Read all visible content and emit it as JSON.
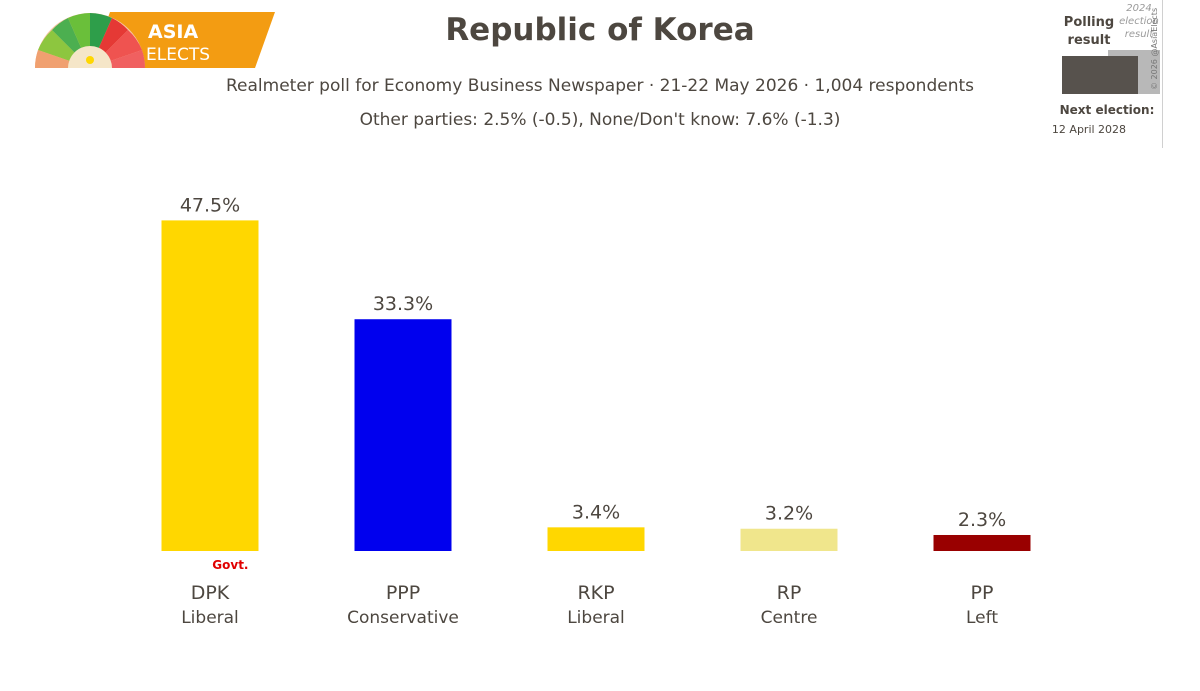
{
  "brand": {
    "line1": "ASIA",
    "line2": "ELECTS"
  },
  "header": {
    "title": "Republic of Korea",
    "subtitle": "Realmeter poll for Economy Business Newspaper · 21-22 May 2026 · 1,004 respondents",
    "note": "Other parties: 2.5% (-0.5), None/Don't know: 7.6% (-1.3)"
  },
  "legend": {
    "polling": "Polling result",
    "election": "2024 election result",
    "copyright": "© 2026 @AsiaElects",
    "next_label": "Next election:",
    "next_date": "12 April 2028"
  },
  "chart_data": {
    "type": "bar",
    "title": "Republic of Korea",
    "ylim": [
      0,
      50
    ],
    "grid": false,
    "categories": [
      "DPK",
      "PPP",
      "RKP",
      "RP",
      "PP"
    ],
    "ideologies": [
      "Liberal",
      "Conservative",
      "Liberal",
      "Centre",
      "Left"
    ],
    "values": [
      47.5,
      33.3,
      3.4,
      3.2,
      2.3
    ],
    "value_labels": [
      "47.5%",
      "33.3%",
      "3.4%",
      "3.2%",
      "2.3%"
    ],
    "colors": [
      "#ffd700",
      "#0000ee",
      "#ffd700",
      "#f0e68c",
      "#990000"
    ],
    "annotations": [
      {
        "category": "DPK",
        "text": "Govt.",
        "color": "#e00000"
      }
    ]
  }
}
